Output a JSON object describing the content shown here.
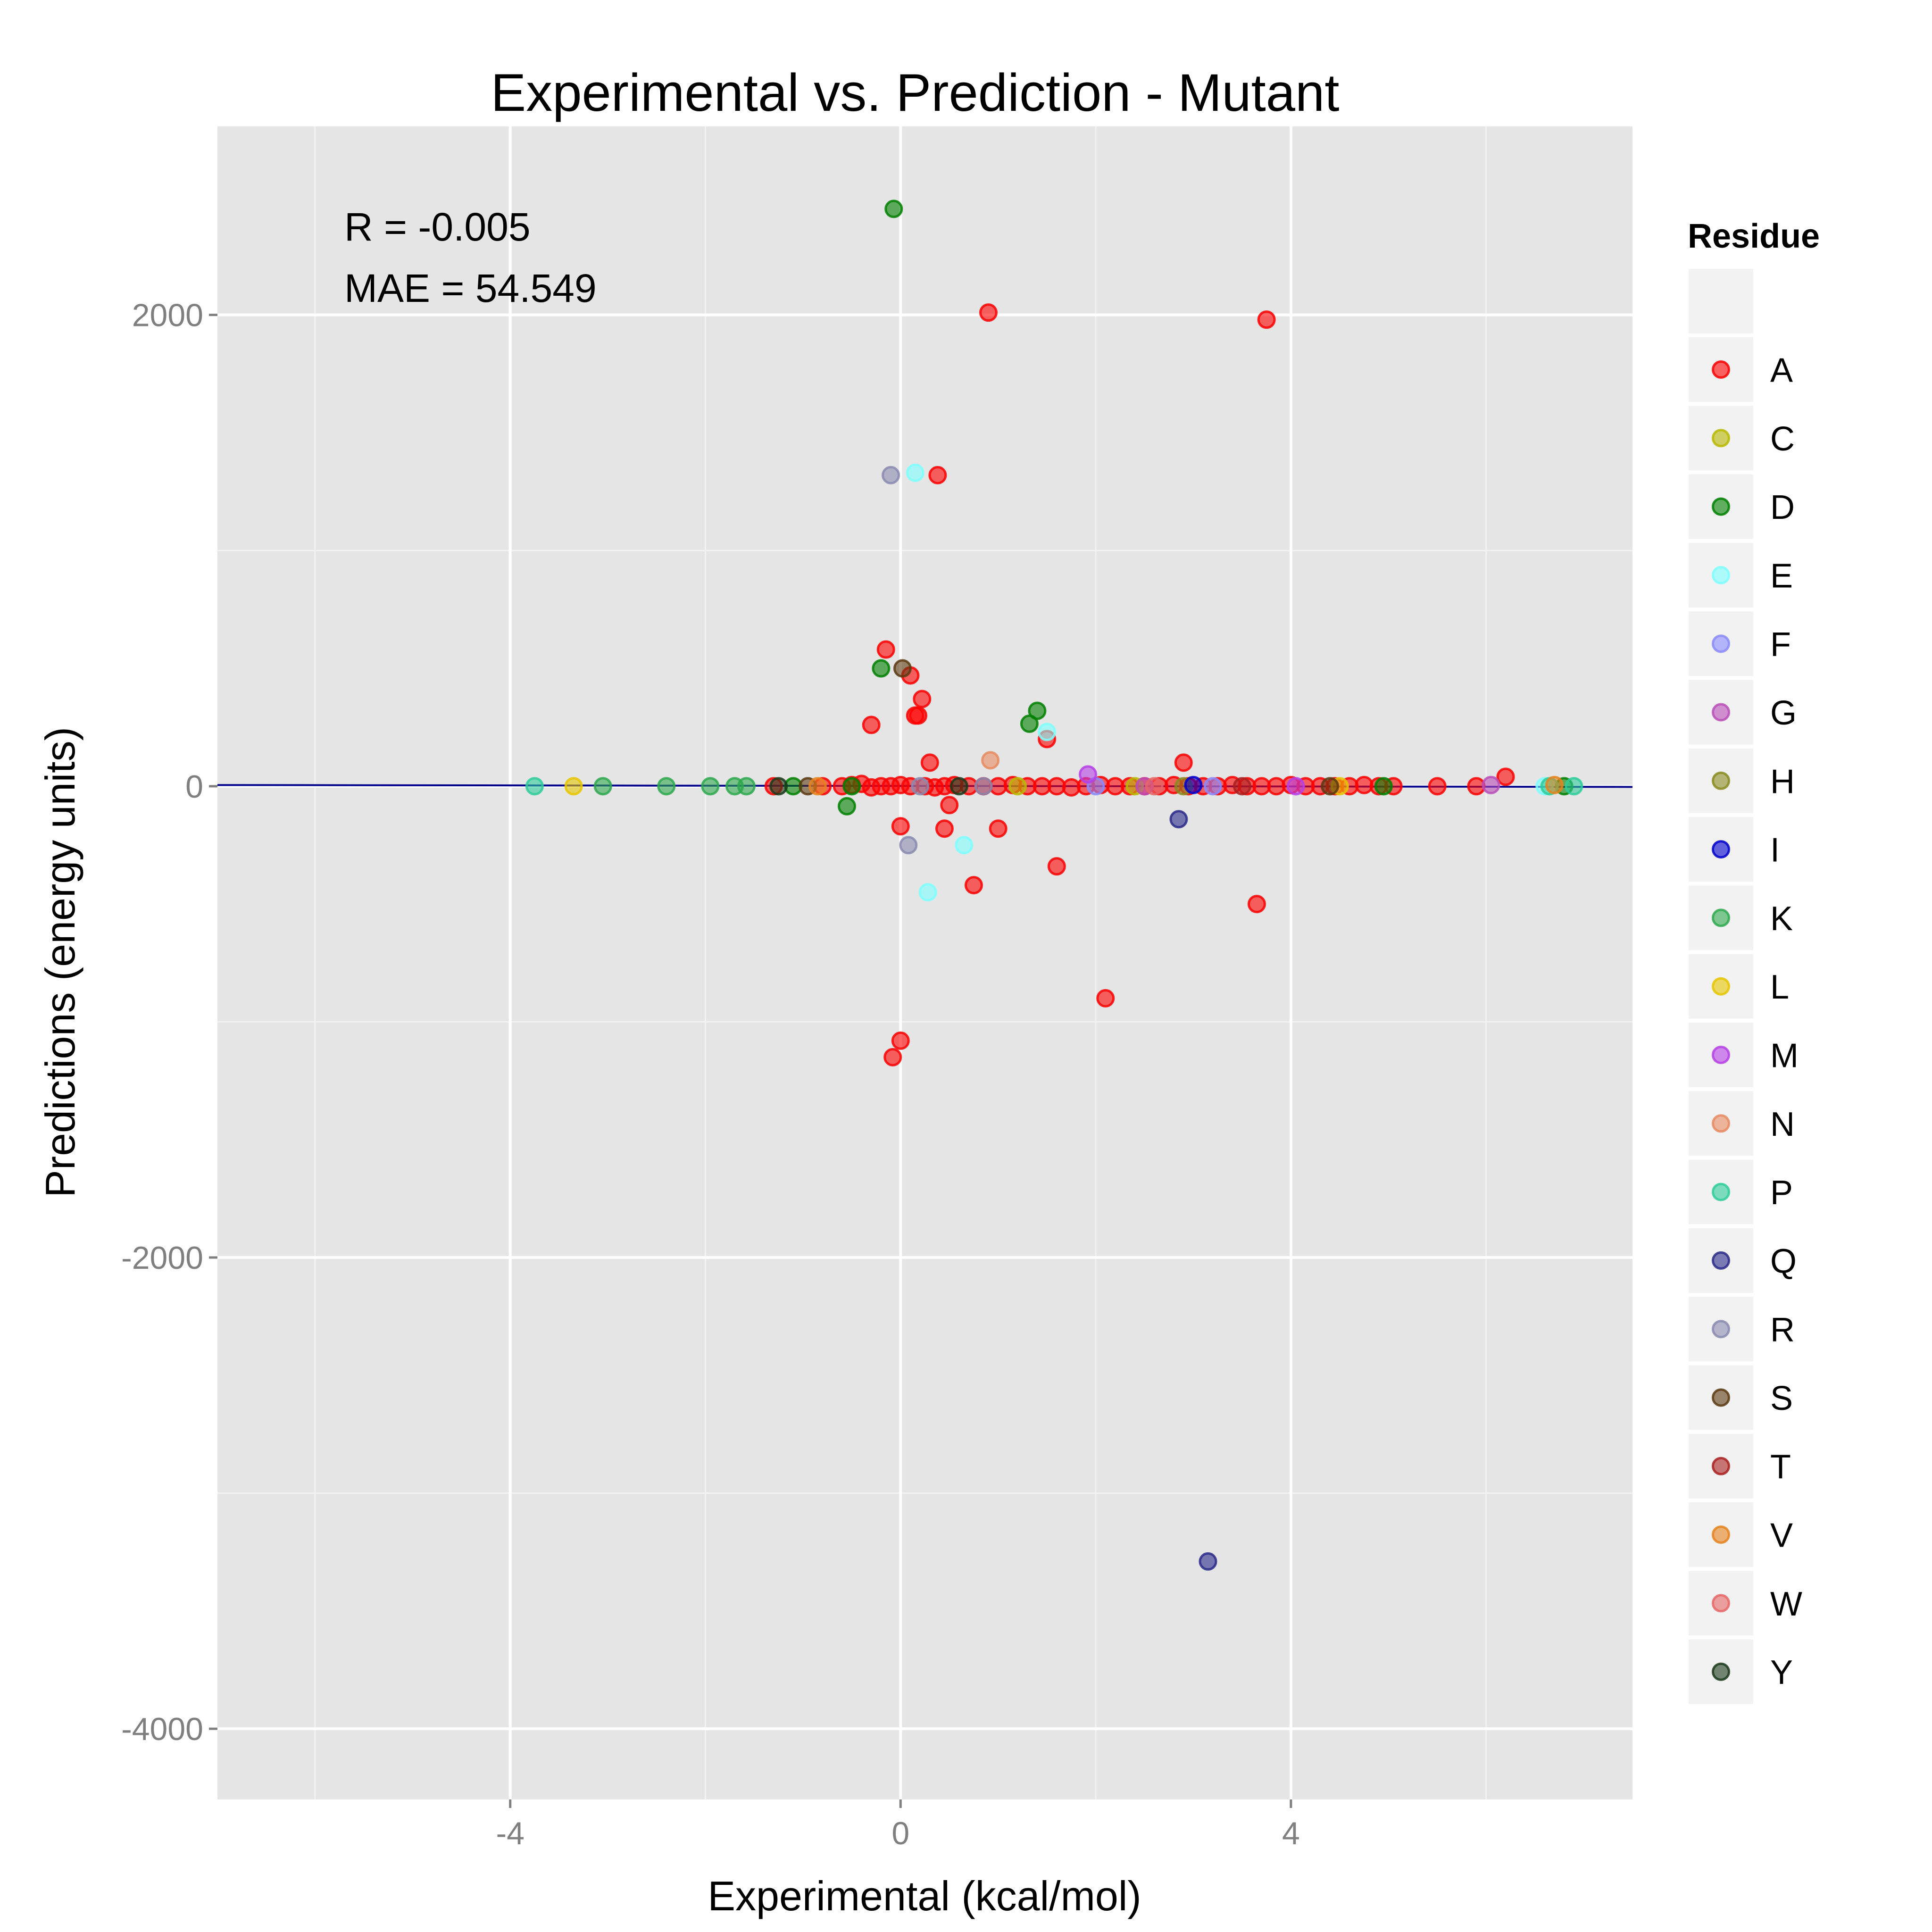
{
  "chart_data": {
    "type": "scatter",
    "title": "Experimental vs. Prediction - Mutant",
    "xlabel": "Experimental (kcal/mol)",
    "ylabel": "Predictions (energy units)",
    "xlim": [
      -7.0,
      7.5
    ],
    "ylim": [
      -4300,
      2800
    ],
    "x_ticks": [
      -4,
      0,
      4
    ],
    "x_tick_labels": [
      "-4",
      "0",
      "4"
    ],
    "y_ticks": [
      -4000,
      -2000,
      0,
      2000
    ],
    "y_tick_labels": [
      "-4000",
      "-2000",
      "0",
      "2000"
    ],
    "grid": true,
    "legend_position": "right",
    "annotations": [
      "R = -0.005",
      "MAE = 54.549"
    ],
    "legend_title": "Residue",
    "fit_line": {
      "color": "#00008b",
      "points": [
        [
          -7.0,
          5
        ],
        [
          7.5,
          -3
        ]
      ]
    },
    "series": [
      {
        "name": "A",
        "color": "#ff0000",
        "points": [
          [
            0.9,
            2010
          ],
          [
            3.75,
            1980
          ],
          [
            0.38,
            1320
          ],
          [
            -0.15,
            580
          ],
          [
            0.1,
            470
          ],
          [
            0.22,
            370
          ],
          [
            0.15,
            300
          ],
          [
            0.18,
            300
          ],
          [
            -0.3,
            260
          ],
          [
            1.5,
            200
          ],
          [
            0.3,
            100
          ],
          [
            2.9,
            100
          ],
          [
            6.2,
            40
          ],
          [
            -0.6,
            0
          ],
          [
            -0.5,
            5
          ],
          [
            -0.4,
            10
          ],
          [
            -0.3,
            -5
          ],
          [
            -0.2,
            0
          ],
          [
            -0.1,
            0
          ],
          [
            0.0,
            5
          ],
          [
            0.1,
            0
          ],
          [
            0.25,
            0
          ],
          [
            0.35,
            -5
          ],
          [
            0.45,
            0
          ],
          [
            0.55,
            5
          ],
          [
            0.7,
            0
          ],
          [
            0.85,
            0
          ],
          [
            1.0,
            0
          ],
          [
            1.15,
            5
          ],
          [
            1.3,
            0
          ],
          [
            1.45,
            0
          ],
          [
            1.6,
            0
          ],
          [
            1.75,
            -5
          ],
          [
            1.9,
            0
          ],
          [
            2.05,
            5
          ],
          [
            2.2,
            0
          ],
          [
            2.35,
            0
          ],
          [
            2.5,
            0
          ],
          [
            2.65,
            0
          ],
          [
            2.8,
            5
          ],
          [
            2.95,
            0
          ],
          [
            3.1,
            0
          ],
          [
            3.25,
            0
          ],
          [
            3.4,
            5
          ],
          [
            3.55,
            0
          ],
          [
            3.7,
            0
          ],
          [
            3.85,
            0
          ],
          [
            4.0,
            5
          ],
          [
            4.15,
            0
          ],
          [
            4.3,
            0
          ],
          [
            4.45,
            0
          ],
          [
            4.6,
            0
          ],
          [
            4.75,
            5
          ],
          [
            4.9,
            0
          ],
          [
            5.05,
            0
          ],
          [
            5.5,
            0
          ],
          [
            5.9,
            0
          ],
          [
            -1.3,
            0
          ],
          [
            -0.8,
            0
          ],
          [
            0.0,
            -170
          ],
          [
            0.45,
            -180
          ],
          [
            1.0,
            -180
          ],
          [
            0.5,
            -80
          ],
          [
            1.6,
            -340
          ],
          [
            0.75,
            -420
          ],
          [
            3.65,
            -500
          ],
          [
            2.1,
            -900
          ],
          [
            0.0,
            -1080
          ],
          [
            -0.08,
            -1150
          ]
        ]
      },
      {
        "name": "C",
        "color": "#b8b800",
        "points": [
          [
            1.2,
            0
          ],
          [
            2.4,
            0
          ]
        ]
      },
      {
        "name": "D",
        "color": "#008000",
        "points": [
          [
            -0.07,
            2450
          ],
          [
            -0.2,
            500
          ],
          [
            1.4,
            320
          ],
          [
            1.32,
            265
          ],
          [
            -0.55,
            -85
          ],
          [
            -1.1,
            0
          ],
          [
            4.95,
            0
          ],
          [
            6.8,
            0
          ],
          [
            -0.5,
            0
          ]
        ]
      },
      {
        "name": "E",
        "color": "#7fffff",
        "points": [
          [
            0.15,
            1330
          ],
          [
            1.5,
            230
          ],
          [
            0.65,
            -250
          ],
          [
            0.28,
            -450
          ],
          [
            6.6,
            0
          ]
        ]
      },
      {
        "name": "F",
        "color": "#8a8aff",
        "points": [
          [
            2.0,
            0
          ],
          [
            3.2,
            0
          ]
        ]
      },
      {
        "name": "G",
        "color": "#b84db8",
        "points": [
          [
            6.05,
            5
          ],
          [
            2.5,
            0
          ]
        ]
      },
      {
        "name": "H",
        "color": "#8a8a20",
        "points": [
          [
            2.9,
            0
          ]
        ]
      },
      {
        "name": "I",
        "color": "#0000cc",
        "points": [
          [
            3.0,
            5
          ]
        ]
      },
      {
        "name": "K",
        "color": "#2ea84d",
        "points": [
          [
            -3.05,
            0
          ],
          [
            -2.4,
            0
          ],
          [
            -1.95,
            0
          ],
          [
            -1.7,
            0
          ],
          [
            -1.58,
            0
          ]
        ]
      },
      {
        "name": "L",
        "color": "#e6c600",
        "points": [
          [
            -3.35,
            0
          ],
          [
            4.5,
            0
          ]
        ]
      },
      {
        "name": "M",
        "color": "#b640e6",
        "points": [
          [
            1.92,
            50
          ],
          [
            4.05,
            0
          ]
        ]
      },
      {
        "name": "N",
        "color": "#e88a60",
        "points": [
          [
            0.92,
            110
          ]
        ]
      },
      {
        "name": "P",
        "color": "#2ecc9a",
        "points": [
          [
            -3.75,
            0
          ],
          [
            6.9,
            0
          ],
          [
            6.65,
            0
          ]
        ]
      },
      {
        "name": "Q",
        "color": "#2a2a8a",
        "points": [
          [
            2.85,
            -140
          ],
          [
            3.15,
            -3290
          ]
        ]
      },
      {
        "name": "R",
        "color": "#8a8ab0",
        "points": [
          [
            -0.1,
            1320
          ],
          [
            0.08,
            -250
          ],
          [
            0.85,
            0
          ],
          [
            0.2,
            0
          ]
        ]
      },
      {
        "name": "S",
        "color": "#5a3a10",
        "points": [
          [
            0.02,
            500
          ],
          [
            -0.95,
            0
          ],
          [
            4.4,
            0
          ]
        ]
      },
      {
        "name": "T",
        "color": "#aa2020",
        "points": [
          [
            3.5,
            0
          ]
        ]
      },
      {
        "name": "V",
        "color": "#e6821e",
        "points": [
          [
            -0.85,
            0
          ],
          [
            6.7,
            5
          ]
        ]
      },
      {
        "name": "W",
        "color": "#e66666",
        "points": [
          [
            2.6,
            0
          ]
        ]
      },
      {
        "name": "Y",
        "color": "#1a3a1a",
        "points": [
          [
            -1.25,
            0
          ],
          [
            0.6,
            0
          ]
        ]
      }
    ]
  }
}
